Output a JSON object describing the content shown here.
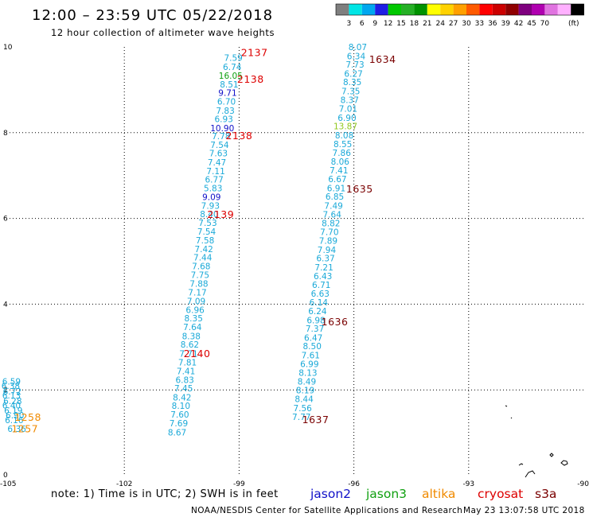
{
  "header": {
    "title": "12:00 – 23:59 UTC 05/22/2018",
    "subtitle": "12 hour collection of altimeter wave heights"
  },
  "colorbar": {
    "unit": "(ft)",
    "colors": [
      "#7f7f7f",
      "#00e5e5",
      "#00a7ef",
      "#1f1fe5",
      "#00c800",
      "#25b025",
      "#009200",
      "#ffff00",
      "#ffd200",
      "#ffa000",
      "#ff5a00",
      "#ff0000",
      "#cc0000",
      "#8f0000",
      "#7f007f",
      "#b000b0",
      "#e073e0",
      "#ffb0ff",
      "#000000"
    ],
    "labels": [
      "3",
      "6",
      "9",
      "12",
      "15",
      "18",
      "21",
      "24",
      "27",
      "30",
      "33",
      "36",
      "39",
      "42",
      "45",
      "70"
    ]
  },
  "axes": {
    "x_ticks": [
      -105,
      -102,
      -99,
      -96,
      -93,
      -90
    ],
    "x_tick_labels": [
      "-105",
      "-102",
      "-99",
      "-96",
      "-93",
      "-90"
    ],
    "y_ticks": [
      0,
      2,
      4,
      6,
      8,
      10
    ],
    "y_tick_labels": [
      "0",
      "2",
      "4",
      "6",
      "8",
      "10"
    ],
    "x_range": [
      -105,
      -90
    ],
    "y_range": [
      0,
      10
    ],
    "grid": "dotted"
  },
  "colors": {
    "cyan": "#1aa9d8",
    "blue": "#1010c8",
    "green": "#10a010",
    "lime": "#8fc81e",
    "pass_red": "#dd0000",
    "pass_dark": "#7a0000",
    "orange": "#f08a00"
  },
  "tracks": [
    {
      "name": "track-a",
      "points": [
        {
          "lat": 9.75,
          "lon": -99.15,
          "v": "7.59",
          "c": "cyan"
        },
        {
          "lat": 9.54,
          "lon": -99.18,
          "v": "6.74",
          "c": "cyan"
        },
        {
          "lat": 9.33,
          "lon": -99.22,
          "v": "16.05",
          "c": "green"
        },
        {
          "lat": 9.13,
          "lon": -99.26,
          "v": "8.51",
          "c": "cyan"
        },
        {
          "lat": 8.93,
          "lon": -99.3,
          "v": "9.71",
          "c": "blue"
        },
        {
          "lat": 8.73,
          "lon": -99.33,
          "v": "6.70",
          "c": "cyan"
        },
        {
          "lat": 8.52,
          "lon": -99.36,
          "v": "7.83",
          "c": "cyan"
        },
        {
          "lat": 8.32,
          "lon": -99.4,
          "v": "6.93",
          "c": "cyan"
        },
        {
          "lat": 8.11,
          "lon": -99.44,
          "v": "10.90",
          "c": "blue"
        },
        {
          "lat": 7.92,
          "lon": -99.47,
          "v": "7.78",
          "c": "cyan"
        },
        {
          "lat": 7.72,
          "lon": -99.51,
          "v": "7.54",
          "c": "cyan"
        },
        {
          "lat": 7.52,
          "lon": -99.54,
          "v": "7.63",
          "c": "cyan"
        },
        {
          "lat": 7.31,
          "lon": -99.58,
          "v": "7.47",
          "c": "cyan"
        },
        {
          "lat": 7.11,
          "lon": -99.61,
          "v": "7.11",
          "c": "cyan"
        },
        {
          "lat": 6.91,
          "lon": -99.65,
          "v": "6.77",
          "c": "cyan"
        },
        {
          "lat": 6.71,
          "lon": -99.68,
          "v": "5.83",
          "c": "cyan"
        },
        {
          "lat": 6.5,
          "lon": -99.72,
          "v": "9.09",
          "c": "blue"
        },
        {
          "lat": 6.3,
          "lon": -99.75,
          "v": "7.93",
          "c": "cyan"
        },
        {
          "lat": 6.1,
          "lon": -99.78,
          "v": "8.40",
          "c": "cyan"
        },
        {
          "lat": 5.9,
          "lon": -99.82,
          "v": "7.53",
          "c": "cyan"
        },
        {
          "lat": 5.7,
          "lon": -99.85,
          "v": "7.54",
          "c": "cyan"
        },
        {
          "lat": 5.49,
          "lon": -99.89,
          "v": "7.58",
          "c": "cyan"
        },
        {
          "lat": 5.29,
          "lon": -99.92,
          "v": "7.42",
          "c": "cyan"
        },
        {
          "lat": 5.09,
          "lon": -99.95,
          "v": "7.44",
          "c": "cyan"
        },
        {
          "lat": 4.89,
          "lon": -99.99,
          "v": "7.68",
          "c": "cyan"
        },
        {
          "lat": 4.68,
          "lon": -100.02,
          "v": "7.75",
          "c": "cyan"
        },
        {
          "lat": 4.48,
          "lon": -100.05,
          "v": "7.88",
          "c": "cyan"
        },
        {
          "lat": 4.28,
          "lon": -100.09,
          "v": "7.17",
          "c": "cyan"
        },
        {
          "lat": 4.07,
          "lon": -100.12,
          "v": "7.09",
          "c": "cyan"
        },
        {
          "lat": 3.87,
          "lon": -100.15,
          "v": "6.96",
          "c": "cyan"
        },
        {
          "lat": 3.67,
          "lon": -100.19,
          "v": "8.35",
          "c": "cyan"
        },
        {
          "lat": 3.47,
          "lon": -100.22,
          "v": "7.64",
          "c": "cyan"
        },
        {
          "lat": 3.26,
          "lon": -100.25,
          "v": "8.38",
          "c": "cyan"
        },
        {
          "lat": 3.06,
          "lon": -100.29,
          "v": "8.62",
          "c": "cyan"
        },
        {
          "lat": 2.85,
          "lon": -100.32,
          "v": "7.71",
          "c": "cyan"
        },
        {
          "lat": 2.64,
          "lon": -100.35,
          "v": "7.81",
          "c": "cyan"
        },
        {
          "lat": 2.44,
          "lon": -100.39,
          "v": "7.41",
          "c": "cyan"
        },
        {
          "lat": 2.24,
          "lon": -100.42,
          "v": "6.83",
          "c": "cyan"
        },
        {
          "lat": 2.04,
          "lon": -100.45,
          "v": "7.45",
          "c": "cyan"
        },
        {
          "lat": 1.83,
          "lon": -100.49,
          "v": "8.42",
          "c": "cyan"
        },
        {
          "lat": 1.63,
          "lon": -100.52,
          "v": "8.10",
          "c": "cyan"
        },
        {
          "lat": 1.43,
          "lon": -100.55,
          "v": "7.60",
          "c": "cyan"
        },
        {
          "lat": 1.22,
          "lon": -100.58,
          "v": "7.69",
          "c": "cyan"
        },
        {
          "lat": 1.01,
          "lon": -100.62,
          "v": "8.67",
          "c": "cyan"
        }
      ]
    },
    {
      "name": "track-b",
      "points": [
        {
          "lat": 10.0,
          "lon": -95.9,
          "v": "8.07",
          "c": "cyan"
        },
        {
          "lat": 9.79,
          "lon": -95.94,
          "v": "6.34",
          "c": "cyan"
        },
        {
          "lat": 9.59,
          "lon": -95.97,
          "v": "7.73",
          "c": "cyan"
        },
        {
          "lat": 9.38,
          "lon": -96.01,
          "v": "6.27",
          "c": "cyan"
        },
        {
          "lat": 9.18,
          "lon": -96.04,
          "v": "8.35",
          "c": "cyan"
        },
        {
          "lat": 8.97,
          "lon": -96.08,
          "v": "7.35",
          "c": "cyan"
        },
        {
          "lat": 8.77,
          "lon": -96.11,
          "v": "8.37",
          "c": "cyan"
        },
        {
          "lat": 8.56,
          "lon": -96.15,
          "v": "7.01",
          "c": "cyan"
        },
        {
          "lat": 8.35,
          "lon": -96.18,
          "v": "6.90",
          "c": "cyan"
        },
        {
          "lat": 8.15,
          "lon": -96.22,
          "v": "13.87",
          "c": "lime"
        },
        {
          "lat": 7.94,
          "lon": -96.25,
          "v": "8.08",
          "c": "cyan"
        },
        {
          "lat": 7.74,
          "lon": -96.29,
          "v": "8.55",
          "c": "cyan"
        },
        {
          "lat": 7.53,
          "lon": -96.32,
          "v": "7.86",
          "c": "cyan"
        },
        {
          "lat": 7.33,
          "lon": -96.36,
          "v": "8.06",
          "c": "cyan"
        },
        {
          "lat": 7.12,
          "lon": -96.39,
          "v": "7.41",
          "c": "cyan"
        },
        {
          "lat": 6.92,
          "lon": -96.43,
          "v": "6.67",
          "c": "cyan"
        },
        {
          "lat": 6.71,
          "lon": -96.46,
          "v": "6.91",
          "c": "cyan"
        },
        {
          "lat": 6.51,
          "lon": -96.5,
          "v": "6.85",
          "c": "cyan"
        },
        {
          "lat": 6.3,
          "lon": -96.53,
          "v": "7.49",
          "c": "cyan"
        },
        {
          "lat": 6.09,
          "lon": -96.57,
          "v": "7.64",
          "c": "cyan"
        },
        {
          "lat": 5.89,
          "lon": -96.6,
          "v": "8.82",
          "c": "cyan"
        },
        {
          "lat": 5.69,
          "lon": -96.64,
          "v": "7.70",
          "c": "cyan"
        },
        {
          "lat": 5.48,
          "lon": -96.67,
          "v": "7.89",
          "c": "cyan"
        },
        {
          "lat": 5.27,
          "lon": -96.71,
          "v": "7.94",
          "c": "cyan"
        },
        {
          "lat": 5.07,
          "lon": -96.74,
          "v": "6.37",
          "c": "cyan"
        },
        {
          "lat": 4.86,
          "lon": -96.78,
          "v": "7.21",
          "c": "cyan"
        },
        {
          "lat": 4.66,
          "lon": -96.81,
          "v": "6.43",
          "c": "cyan"
        },
        {
          "lat": 4.45,
          "lon": -96.85,
          "v": "6.71",
          "c": "cyan"
        },
        {
          "lat": 4.25,
          "lon": -96.88,
          "v": "6.63",
          "c": "cyan"
        },
        {
          "lat": 4.04,
          "lon": -96.92,
          "v": "6.14",
          "c": "cyan"
        },
        {
          "lat": 3.84,
          "lon": -96.95,
          "v": "6.24",
          "c": "cyan"
        },
        {
          "lat": 3.63,
          "lon": -96.99,
          "v": "6.98",
          "c": "cyan"
        },
        {
          "lat": 3.43,
          "lon": -97.02,
          "v": "7.37",
          "c": "cyan"
        },
        {
          "lat": 3.22,
          "lon": -97.06,
          "v": "6.47",
          "c": "cyan"
        },
        {
          "lat": 3.02,
          "lon": -97.09,
          "v": "8.50",
          "c": "cyan"
        },
        {
          "lat": 2.81,
          "lon": -97.13,
          "v": "7.61",
          "c": "cyan"
        },
        {
          "lat": 2.61,
          "lon": -97.16,
          "v": "6.99",
          "c": "cyan"
        },
        {
          "lat": 2.4,
          "lon": -97.2,
          "v": "8.13",
          "c": "cyan"
        },
        {
          "lat": 2.2,
          "lon": -97.23,
          "v": "8.49",
          "c": "cyan"
        },
        {
          "lat": 1.99,
          "lon": -97.27,
          "v": "8.19",
          "c": "cyan"
        },
        {
          "lat": 1.79,
          "lon": -97.3,
          "v": "8.44",
          "c": "cyan"
        },
        {
          "lat": 1.58,
          "lon": -97.34,
          "v": "7.56",
          "c": "cyan"
        },
        {
          "lat": 1.37,
          "lon": -97.37,
          "v": "7.77",
          "c": "cyan"
        }
      ]
    },
    {
      "name": "track-c",
      "points": [
        {
          "lat": 2.2,
          "lon": -104.95,
          "v": "6.59",
          "c": "cyan"
        },
        {
          "lat": 2.1,
          "lon": -104.97,
          "v": "6.38",
          "c": "cyan"
        },
        {
          "lat": 1.97,
          "lon": -104.93,
          "v": "6.72",
          "c": "cyan"
        },
        {
          "lat": 1.87,
          "lon": -104.95,
          "v": "6.13",
          "c": "cyan"
        },
        {
          "lat": 1.74,
          "lon": -104.92,
          "v": "6.28",
          "c": "cyan"
        },
        {
          "lat": 1.64,
          "lon": -104.95,
          "v": "6.40",
          "c": "cyan"
        },
        {
          "lat": 1.52,
          "lon": -104.9,
          "v": "6.19",
          "c": "cyan"
        },
        {
          "lat": 1.41,
          "lon": -104.86,
          "v": "6.90",
          "c": "cyan"
        },
        {
          "lat": 1.3,
          "lon": -104.88,
          "v": "6.16",
          "c": "cyan"
        },
        {
          "lat": 1.09,
          "lon": -104.81,
          "v": "6.36",
          "c": "cyan"
        }
      ]
    }
  ],
  "pass_labels": [
    {
      "text": "2137",
      "lat": 9.88,
      "lon": -98.6,
      "c": "pass_red"
    },
    {
      "text": "2138",
      "lat": 9.26,
      "lon": -98.7,
      "c": "pass_red"
    },
    {
      "text": "2138",
      "lat": 7.94,
      "lon": -99.0,
      "c": "pass_red"
    },
    {
      "text": "2139",
      "lat": 6.1,
      "lon": -99.48,
      "c": "pass_red"
    },
    {
      "text": "2140",
      "lat": 2.86,
      "lon": -100.1,
      "c": "pass_red"
    },
    {
      "text": "1634",
      "lat": 9.72,
      "lon": -95.25,
      "c": "pass_dark"
    },
    {
      "text": "1635",
      "lat": 6.7,
      "lon": -95.85,
      "c": "pass_dark"
    },
    {
      "text": "1636",
      "lat": 3.6,
      "lon": -96.5,
      "c": "pass_dark"
    },
    {
      "text": "1637",
      "lat": 1.32,
      "lon": -97.0,
      "c": "pass_dark"
    },
    {
      "text": "1258",
      "lat": 1.37,
      "lon": -104.52,
      "c": "orange"
    },
    {
      "text": "1257",
      "lat": 1.1,
      "lon": -104.6,
      "c": "orange"
    }
  ],
  "footer": {
    "note": "note: 1) Time is in UTC; 2) SWH is in feet",
    "satellites": [
      {
        "name": "jason2",
        "color": "#1010c8"
      },
      {
        "name": "jason3",
        "color": "#10a010"
      },
      {
        "name": "altika",
        "color": "#f08a00"
      },
      {
        "name": "cryosat",
        "color": "#dd0000"
      },
      {
        "name": "s3a",
        "color": "#7a0000"
      }
    ],
    "credit": "NOAA/NESDIS Center for Satellite Applications and Research",
    "timestamp": "May 23 13:07:58 UTC 2018"
  }
}
